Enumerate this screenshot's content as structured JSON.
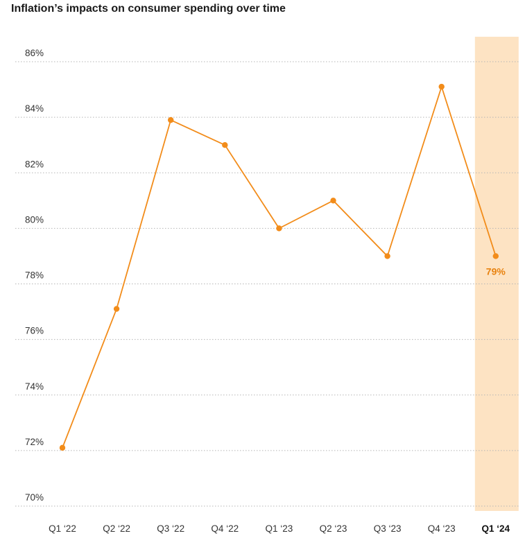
{
  "chart_data": {
    "type": "line",
    "title": "Inflation’s impacts on consumer spending over time",
    "categories": [
      "Q1 ‘22",
      "Q2 ‘22",
      "Q3 ‘22",
      "Q4 ‘22",
      "Q1 ‘23",
      "Q2 ‘23",
      "Q3 ‘23",
      "Q4 ‘23",
      "Q1 ‘24"
    ],
    "series": [
      {
        "values": [
          72.1,
          77.1,
          83.9,
          83.0,
          80.0,
          81.0,
          79.0,
          85.1,
          79.0
        ]
      }
    ],
    "ylim": [
      70,
      86
    ],
    "yticks": [
      "70%",
      "72%",
      "74%",
      "76%",
      "78%",
      "80%",
      "82%",
      "84%",
      "86%"
    ],
    "grid": true,
    "gridline_style": "dotted",
    "highlight_category": "Q1 ‘24",
    "data_labels": [
      {
        "category": "Q1 ‘24",
        "text": "79%"
      }
    ],
    "colors": {
      "line": "#F28C1A",
      "highlight_band": "#FDE3C3",
      "data_label": "#E8820F"
    }
  }
}
